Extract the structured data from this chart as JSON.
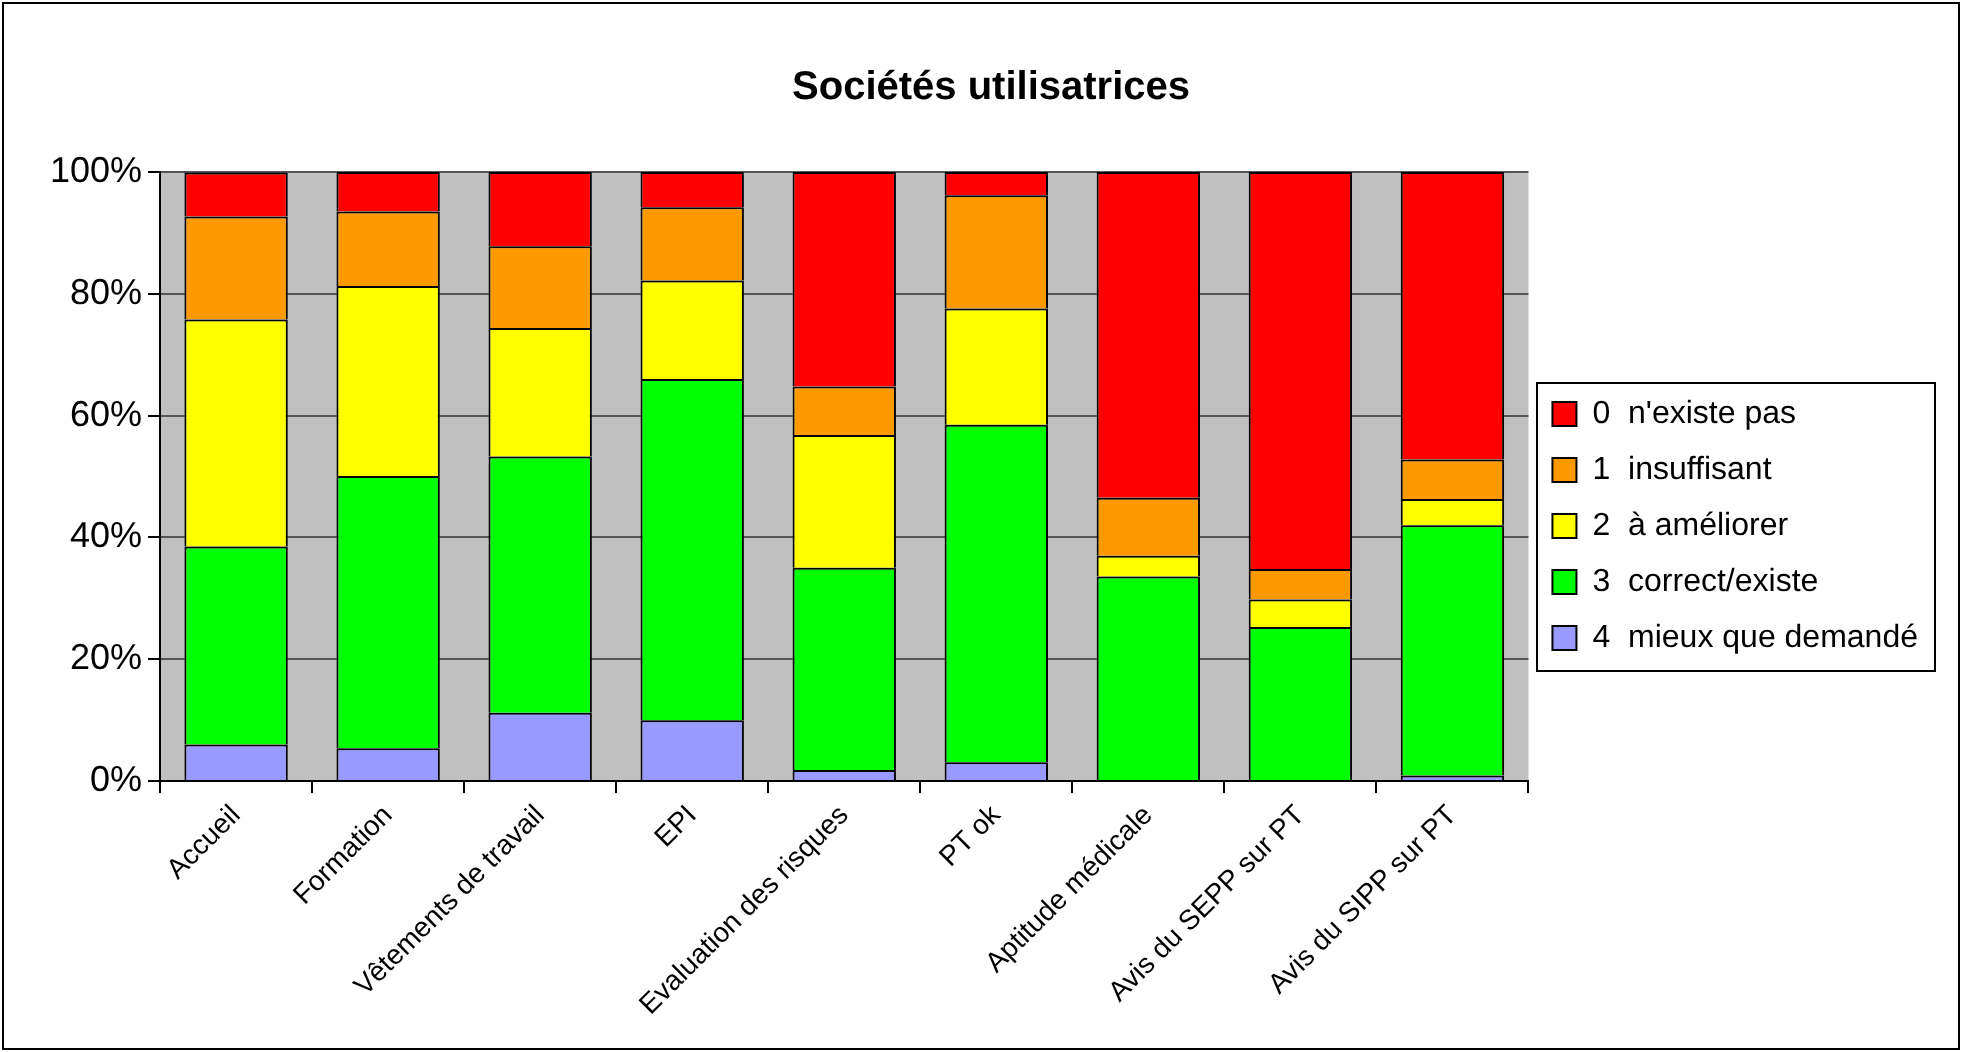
{
  "chart_data": {
    "type": "bar",
    "title": "Sociétés utilisatrices",
    "stacked": true,
    "categories": [
      "Accueil",
      "Formation",
      "Vêtements de travail",
      "EPI",
      "Evaluation des risques",
      "PT ok",
      "Aptitude médicale",
      "Avis du SEPP sur PT",
      "Avis du SIPP sur PT"
    ],
    "series": [
      {
        "name": "4  mieux que demandé",
        "color": "#9999ff",
        "values": [
          6,
          5.4,
          11.2,
          10,
          1.8,
          3.1,
          0,
          0,
          0.9
        ]
      },
      {
        "name": "3  correct/existe",
        "color": "#00ff00",
        "values": [
          32.5,
          44.7,
          42.1,
          56,
          33.2,
          55.4,
          33.6,
          25.3,
          41.1
        ]
      },
      {
        "name": "2  à améliorer",
        "color": "#ffff00",
        "values": [
          37.3,
          31.2,
          21.1,
          16.2,
          21.8,
          19.1,
          3.4,
          4.5,
          4.3
        ]
      },
      {
        "name": "1  insuffisant",
        "color": "#ff9900",
        "values": [
          16.9,
          12.2,
          13.4,
          12,
          8,
          18.6,
          9.5,
          5,
          6.5
        ]
      },
      {
        "name": "0  n'existe pas",
        "color": "#ff0000",
        "values": [
          7.2,
          6.5,
          12.2,
          5.8,
          35.2,
          3.8,
          53.5,
          65.2,
          47.2
        ]
      }
    ],
    "ylim": [
      0,
      100
    ],
    "yticks": [
      {
        "value": 0,
        "label": "0%"
      },
      {
        "value": 20,
        "label": "20%"
      },
      {
        "value": 40,
        "label": "40%"
      },
      {
        "value": 60,
        "label": "60%"
      },
      {
        "value": 80,
        "label": "80%"
      },
      {
        "value": 100,
        "label": "100%"
      }
    ],
    "grid": "y",
    "legend": "right"
  }
}
